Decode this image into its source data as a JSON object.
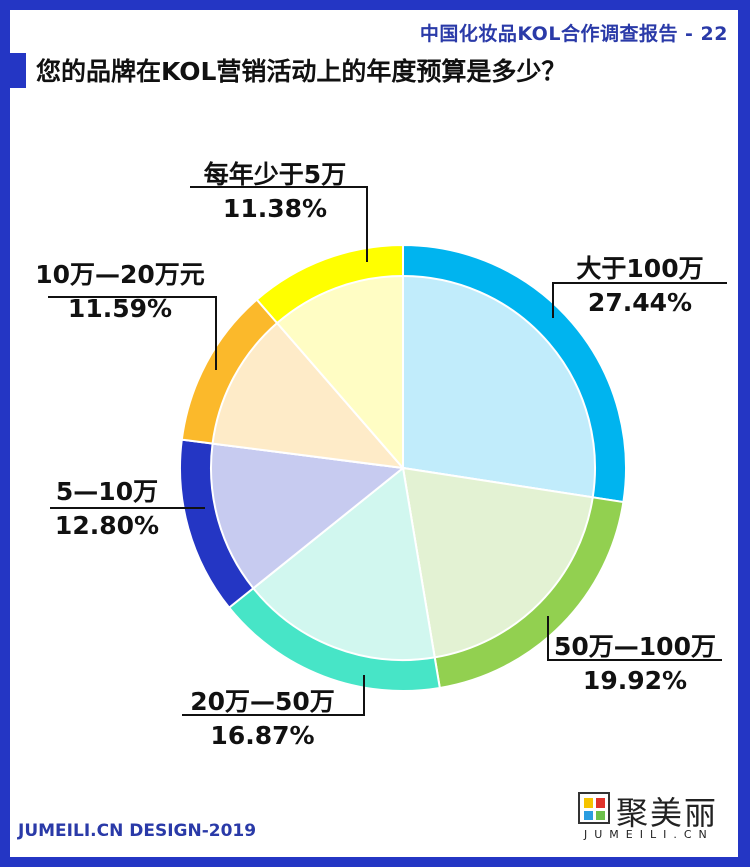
{
  "header": {
    "report_ref": "中国化妆品KOL合作调查报告 - 22",
    "title": "您的品牌在KOL营销活动上的年度预算是多少？"
  },
  "footer": {
    "credit": "JUMEILI.CN DESIGN-2019",
    "logo_text": "聚美丽",
    "logo_sub": "JUMEILI.CN"
  },
  "colors": {
    "frame": "#2436c4",
    "accent_text": "#2a3aa8"
  },
  "chart_data": {
    "type": "pie",
    "title": "您的品牌在KOL营销活动上的年度预算是多少？",
    "categories": [
      "大于100万",
      "50万—100万",
      "20万—50万",
      "5—10万",
      "10万—20万元",
      "每年少于5万"
    ],
    "values": [
      27.44,
      19.92,
      16.87,
      12.8,
      11.59,
      11.38
    ],
    "labels": [
      "27.44%",
      "19.92%",
      "16.87%",
      "12.80%",
      "11.59%",
      "11.38%"
    ],
    "ring_colors": [
      "#00b4ef",
      "#92d050",
      "#47e5c7",
      "#2436c4",
      "#fbb92b",
      "#ffff00"
    ],
    "fill_colors": [
      "#c1ecfb",
      "#e3f2d3",
      "#d1f7ef",
      "#c7cbf0",
      "#feebc8",
      "#fffdc4"
    ],
    "start_angle": "12 o'clock, clockwise",
    "legend": "none (callout labels)"
  }
}
